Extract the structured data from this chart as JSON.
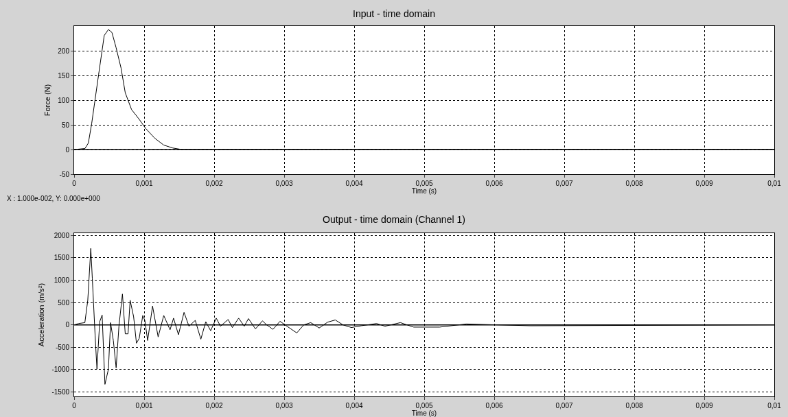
{
  "chart_data": [
    {
      "type": "line",
      "title": "Input - time domain",
      "xlabel": "Time (s)",
      "ylabel": "Force (N)",
      "x": [
        0,
        0.000155,
        0.000203,
        0.00025,
        0.00035,
        0.00043,
        0.00049,
        0.00054,
        0.0006,
        0.00067,
        0.00073,
        0.00082,
        0.00093,
        0.00102,
        0.00115,
        0.00128,
        0.00141,
        0.00154,
        0.01
      ],
      "series": [
        {
          "color": "#000000",
          "values": [
            0,
            2,
            13,
            52,
            152,
            231,
            243,
            237,
            206,
            165,
            115,
            81,
            61,
            43,
            23,
            9,
            3,
            0,
            0
          ]
        }
      ],
      "xlim": [
        0,
        0.01
      ],
      "xticks": [
        0,
        {
          "value": 0.001,
          "label": "0,001"
        },
        {
          "value": 0.002,
          "label": "0,002"
        },
        {
          "value": 0.003,
          "label": "0,003"
        },
        {
          "value": 0.004,
          "label": "0,004"
        },
        {
          "value": 0.005,
          "label": "0,005"
        },
        {
          "value": 0.006,
          "label": "0,006"
        },
        {
          "value": 0.007,
          "label": "0,007"
        },
        {
          "value": 0.008,
          "label": "0,008"
        },
        {
          "value": 0.009,
          "label": "0,009"
        },
        {
          "value": 0.01,
          "label": "0,01"
        }
      ],
      "ylim": [
        -50,
        250
      ],
      "yticks": [
        -50,
        0,
        50,
        100,
        150,
        200
      ],
      "grid": true,
      "marker": "none",
      "line_style": "solid",
      "ref_lines": [
        {
          "axis": "y",
          "value": 0,
          "color": "#000000"
        }
      ],
      "annotations": [
        "X : 1.000e-002, Y: 0.000e+000"
      ]
    },
    {
      "type": "line",
      "title": "Output - time domain (Channel 1)",
      "xlabel": "Time (s)",
      "ylabel": "Acceleration (m/s²)",
      "x": [
        0,
        6.5e-05,
        0.000153,
        0.000195,
        0.000238,
        0.00026,
        0.0003,
        0.000326,
        0.000365,
        0.0004,
        0.00044,
        0.00049,
        0.00052,
        0.00056,
        0.0006,
        0.00064,
        0.00069,
        0.00073,
        0.00077,
        0.0008,
        0.00085,
        0.00089,
        0.00093,
        0.00098,
        0.00101,
        0.00105,
        0.00112,
        0.0012,
        0.00128,
        0.00137,
        0.00142,
        0.00149,
        0.00157,
        0.00164,
        0.00173,
        0.00181,
        0.00188,
        0.00195,
        0.00203,
        0.00209,
        0.0022,
        0.00226,
        0.00235,
        0.00243,
        0.00249,
        0.00259,
        0.00269,
        0.00275,
        0.00284,
        0.00294,
        0.00304,
        0.00318,
        0.00328,
        0.00338,
        0.0035,
        0.00362,
        0.00373,
        0.00384,
        0.00396,
        0.0041,
        0.00432,
        0.00444,
        0.00466,
        0.00485,
        0.00522,
        0.0056,
        0.00604,
        0.00652,
        0.01
      ],
      "series": [
        {
          "color": "#000000",
          "values": [
            0,
            30,
            50,
            550,
            1710,
            1030,
            -250,
            -990,
            70,
            220,
            -1330,
            -990,
            50,
            -350,
            -960,
            -30,
            690,
            -200,
            -200,
            550,
            180,
            -410,
            -300,
            210,
            100,
            -350,
            420,
            -270,
            210,
            -110,
            150,
            -220,
            280,
            -30,
            100,
            -320,
            70,
            -130,
            150,
            -30,
            120,
            -60,
            150,
            -30,
            140,
            -90,
            90,
            0,
            -100,
            80,
            -30,
            -180,
            0,
            50,
            -70,
            60,
            110,
            0,
            -60,
            -20,
            30,
            -30,
            50,
            -50,
            -50,
            20,
            0,
            -20,
            0
          ]
        }
      ],
      "xlim": [
        0,
        0.01
      ],
      "xticks": [
        0,
        {
          "value": 0.001,
          "label": "0,001"
        },
        {
          "value": 0.002,
          "label": "0,002"
        },
        {
          "value": 0.003,
          "label": "0,003"
        },
        {
          "value": 0.004,
          "label": "0,004"
        },
        {
          "value": 0.005,
          "label": "0,005"
        },
        {
          "value": 0.006,
          "label": "0,006"
        },
        {
          "value": 0.007,
          "label": "0,007"
        },
        {
          "value": 0.008,
          "label": "0,008"
        },
        {
          "value": 0.009,
          "label": "0,009"
        },
        {
          "value": 0.01,
          "label": "0,01"
        }
      ],
      "ylim": [
        -1600,
        2050
      ],
      "yticks": [
        -1500,
        -1000,
        -500,
        0,
        500,
        1000,
        1500,
        2000
      ],
      "grid": true,
      "marker": "none",
      "line_style": "solid",
      "ref_lines": [
        {
          "axis": "y",
          "value": 0,
          "color": "#000000"
        }
      ]
    }
  ]
}
